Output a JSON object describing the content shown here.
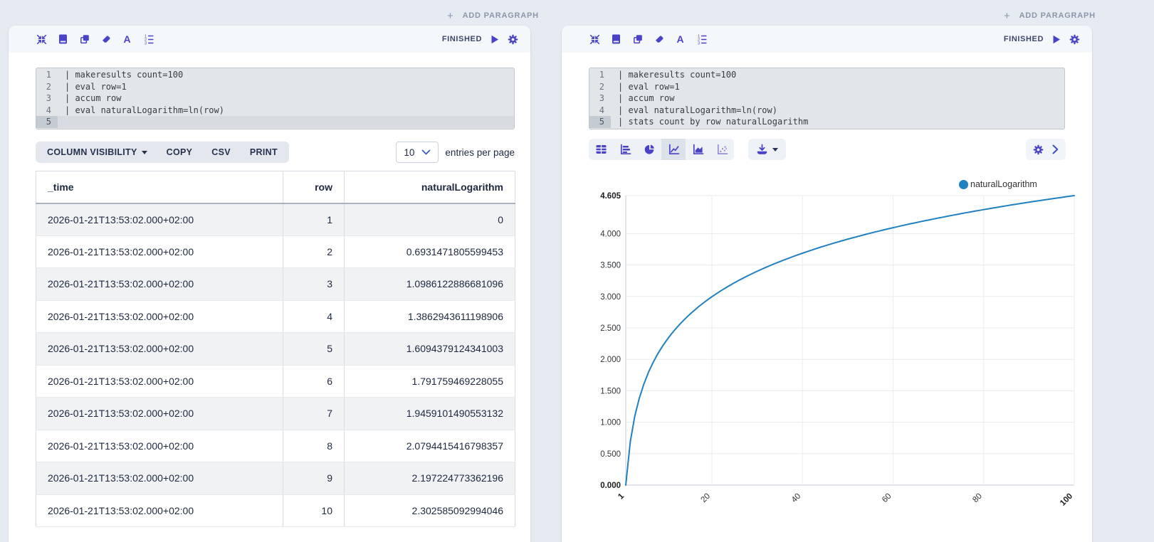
{
  "page": {
    "add_paragraph": {
      "label": "ADD PARAGRAPH"
    }
  },
  "colors": {
    "accent": "#4a43c7",
    "panel_header_bg": "#f5f8fb",
    "chart_line": "#2180c0",
    "status_text": "#3d4668",
    "table_stripe": "#f1f2f4"
  },
  "panel_toolbar_icons": [
    "collapse-icon",
    "notebook-icon",
    "copy-icon",
    "eraser-icon",
    "font-icon",
    "ordered-list-icon"
  ],
  "left_panel": {
    "status": {
      "label": "FINISHED",
      "icons": [
        "play-icon",
        "gear-icon"
      ]
    },
    "code": {
      "active_line": 5,
      "lines": [
        "| makeresults count=100",
        "| eval row=1",
        "| accum row",
        "| eval naturalLogarithm=ln(row)",
        ""
      ]
    },
    "controls": {
      "buttons": [
        {
          "label": "COLUMN VISIBILITY",
          "has_caret": true
        },
        {
          "label": "COPY"
        },
        {
          "label": "CSV"
        },
        {
          "label": "PRINT"
        }
      ],
      "page_size": "10",
      "entries_label": "entries per page"
    },
    "table": {
      "columns": [
        {
          "label": "_time",
          "align": "left"
        },
        {
          "label": "row",
          "align": "right"
        },
        {
          "label": "naturalLogarithm",
          "align": "right"
        }
      ],
      "rows": [
        [
          "2026-01-21T13:53:02.000+02:00",
          "1",
          "0"
        ],
        [
          "2026-01-21T13:53:02.000+02:00",
          "2",
          "0.6931471805599453"
        ],
        [
          "2026-01-21T13:53:02.000+02:00",
          "3",
          "1.0986122886681096"
        ],
        [
          "2026-01-21T13:53:02.000+02:00",
          "4",
          "1.3862943611198906"
        ],
        [
          "2026-01-21T13:53:02.000+02:00",
          "5",
          "1.6094379124341003"
        ],
        [
          "2026-01-21T13:53:02.000+02:00",
          "6",
          "1.791759469228055"
        ],
        [
          "2026-01-21T13:53:02.000+02:00",
          "7",
          "1.9459101490553132"
        ],
        [
          "2026-01-21T13:53:02.000+02:00",
          "8",
          "2.0794415416798357"
        ],
        [
          "2026-01-21T13:53:02.000+02:00",
          "9",
          "2.197224773362196"
        ],
        [
          "2026-01-21T13:53:02.000+02:00",
          "10",
          "2.302585092994046"
        ]
      ]
    }
  },
  "right_panel": {
    "status": {
      "label": "FINISHED",
      "icons": [
        "play-icon",
        "gear-icon"
      ]
    },
    "code": {
      "active_line": 5,
      "lines": [
        "| makeresults count=100",
        "| eval row=1",
        "| accum row",
        "| eval naturalLogarithm=ln(row)",
        "| stats count by row naturalLogarithm"
      ]
    },
    "chart_toolbar": {
      "types": [
        {
          "name": "table",
          "selected": false
        },
        {
          "name": "bar",
          "selected": false
        },
        {
          "name": "pie",
          "selected": false
        },
        {
          "name": "line",
          "selected": true
        },
        {
          "name": "area",
          "selected": false
        },
        {
          "name": "scatter",
          "selected": false
        }
      ],
      "download_icon": "download-icon",
      "settings_icons": [
        "gear-icon",
        "chevron-right-icon"
      ]
    }
  },
  "chart_data": {
    "type": "line",
    "title": "",
    "xlabel": "",
    "ylabel": "",
    "legend": [
      "naturalLogarithm"
    ],
    "legend_position": "top-right",
    "grid": true,
    "xlim": [
      1,
      100
    ],
    "ylim": [
      0,
      4.605
    ],
    "x_ticks": [
      "1",
      "20",
      "40",
      "60",
      "80",
      "100"
    ],
    "y_ticks": [
      "0.000",
      "0.500",
      "1.000",
      "1.500",
      "2.000",
      "2.500",
      "3.000",
      "3.500",
      "4.000",
      "4.605"
    ],
    "series": [
      {
        "name": "naturalLogarithm",
        "color": "#2180c0",
        "x": [
          1,
          2,
          3,
          4,
          5,
          6,
          7,
          8,
          9,
          10,
          11,
          12,
          13,
          14,
          15,
          16,
          17,
          18,
          19,
          20,
          21,
          22,
          23,
          24,
          25,
          26,
          27,
          28,
          29,
          30,
          31,
          32,
          33,
          34,
          35,
          36,
          37,
          38,
          39,
          40,
          41,
          42,
          43,
          44,
          45,
          46,
          47,
          48,
          49,
          50,
          51,
          52,
          53,
          54,
          55,
          56,
          57,
          58,
          59,
          60,
          61,
          62,
          63,
          64,
          65,
          66,
          67,
          68,
          69,
          70,
          71,
          72,
          73,
          74,
          75,
          76,
          77,
          78,
          79,
          80,
          81,
          82,
          83,
          84,
          85,
          86,
          87,
          88,
          89,
          90,
          91,
          92,
          93,
          94,
          95,
          96,
          97,
          98,
          99,
          100
        ],
        "y": [
          0,
          0.6931,
          1.0986,
          1.3863,
          1.6094,
          1.7918,
          1.9459,
          2.0794,
          2.1972,
          2.3026,
          2.3979,
          2.4849,
          2.5649,
          2.6391,
          2.7081,
          2.7726,
          2.8332,
          2.8904,
          2.9444,
          2.9957,
          3.0445,
          3.091,
          3.1355,
          3.1781,
          3.2189,
          3.2581,
          3.2958,
          3.3322,
          3.3673,
          3.4012,
          3.434,
          3.4657,
          3.4965,
          3.5264,
          3.5553,
          3.5835,
          3.6109,
          3.6376,
          3.6636,
          3.6889,
          3.7136,
          3.7377,
          3.7612,
          3.7842,
          3.8067,
          3.8286,
          3.8501,
          3.8712,
          3.8918,
          3.912,
          3.9318,
          3.9512,
          3.9703,
          3.989,
          4.0073,
          4.0254,
          4.0431,
          4.0604,
          4.0775,
          4.0943,
          4.1109,
          4.1271,
          4.1431,
          4.1589,
          4.1744,
          4.1897,
          4.2047,
          4.2195,
          4.2341,
          4.2485,
          4.2627,
          4.2767,
          4.2905,
          4.3041,
          4.3175,
          4.3307,
          4.3438,
          4.3567,
          4.3694,
          4.382,
          4.3944,
          4.4067,
          4.4188,
          4.4308,
          4.4427,
          4.4543,
          4.4659,
          4.4773,
          4.4886,
          4.4998,
          4.5109,
          4.5218,
          4.5326,
          4.5433,
          4.5539,
          4.5643,
          4.5747,
          4.585,
          4.5951,
          4.6052
        ]
      }
    ]
  }
}
